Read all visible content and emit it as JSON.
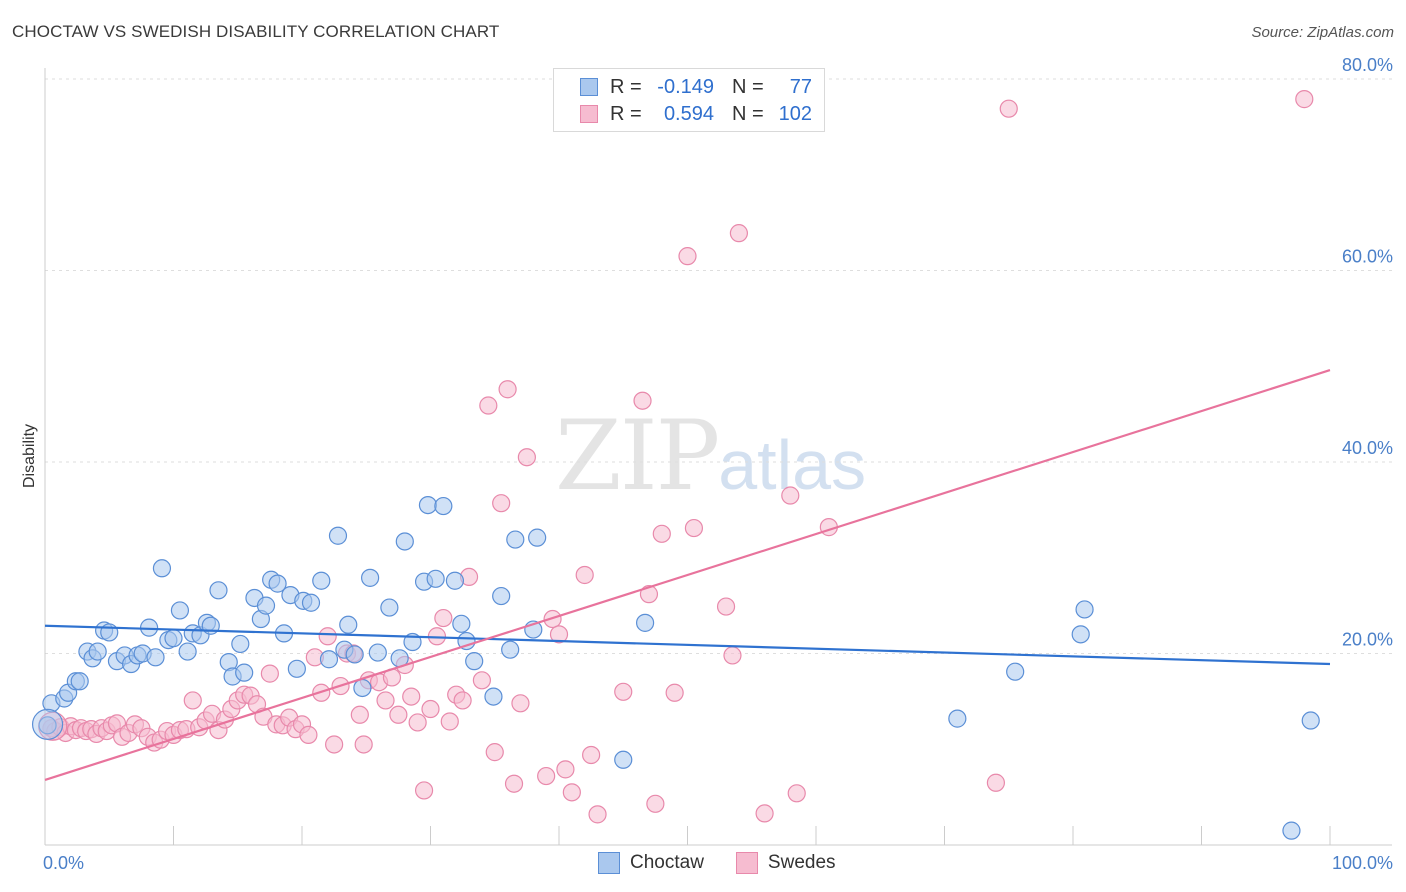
{
  "header": {
    "title": "CHOCTAW VS SWEDISH DISABILITY CORRELATION CHART",
    "source": "Source: ZipAtlas.com"
  },
  "watermark": {
    "zip": "ZIP",
    "atlas": "atlas"
  },
  "legend": {
    "rows": [
      {
        "r_label": "R =",
        "r_value": "-0.149",
        "n_label": "N =",
        "n_value": "77"
      },
      {
        "r_label": "R =",
        "r_value": "0.594",
        "n_label": "N =",
        "n_value": "102"
      }
    ]
  },
  "bottom_legend": {
    "choctaw": "Choctaw",
    "swedes": "Swedes"
  },
  "colors": {
    "choctaw_fill": "#aac8ee",
    "choctaw_stroke": "#5b8fd6",
    "choctaw_line": "#2f72d0",
    "swedes_fill": "#f6bcd0",
    "swedes_stroke": "#e889ab",
    "swedes_line": "#e8739c"
  },
  "chart_data": {
    "type": "scatter",
    "title": "CHOCTAW VS SWEDISH DISABILITY CORRELATION CHART",
    "xlabel": "",
    "ylabel": "Disability",
    "xlim": [
      0,
      100
    ],
    "ylim": [
      0,
      84
    ],
    "x_tick_labels": [
      "0.0%",
      "100.0%"
    ],
    "y_ticks": [
      20,
      40,
      60,
      80
    ],
    "y_tick_labels": [
      "20.0%",
      "40.0%",
      "60.0%",
      "80.0%"
    ],
    "grid": "horizontal dashed",
    "series": [
      {
        "name": "Choctaw",
        "r": -0.149,
        "n": 77,
        "trend": [
          [
            0,
            22.9
          ],
          [
            100,
            18.9
          ]
        ],
        "points": [
          [
            0.2,
            12.5
          ],
          [
            0.5,
            14.8
          ],
          [
            1.5,
            15.3
          ],
          [
            1.8,
            15.9
          ],
          [
            2.4,
            17.1
          ],
          [
            2.7,
            17.1
          ],
          [
            3.3,
            20.2
          ],
          [
            3.7,
            19.5
          ],
          [
            4.1,
            20.2
          ],
          [
            4.6,
            22.4
          ],
          [
            5.0,
            22.2
          ],
          [
            5.6,
            19.2
          ],
          [
            6.2,
            19.8
          ],
          [
            6.7,
            18.9
          ],
          [
            7.2,
            19.8
          ],
          [
            7.6,
            20.0
          ],
          [
            8.1,
            22.7
          ],
          [
            8.6,
            19.6
          ],
          [
            9.1,
            28.9
          ],
          [
            9.6,
            21.4
          ],
          [
            10.0,
            21.6
          ],
          [
            10.5,
            24.5
          ],
          [
            11.1,
            20.2
          ],
          [
            11.5,
            22.1
          ],
          [
            12.1,
            21.9
          ],
          [
            12.6,
            23.2
          ],
          [
            12.9,
            22.9
          ],
          [
            13.5,
            26.6
          ],
          [
            14.3,
            19.1
          ],
          [
            14.6,
            17.6
          ],
          [
            15.2,
            21.0
          ],
          [
            15.5,
            18.0
          ],
          [
            16.3,
            25.8
          ],
          [
            16.8,
            23.6
          ],
          [
            17.2,
            25.0
          ],
          [
            17.6,
            27.7
          ],
          [
            18.1,
            27.3
          ],
          [
            18.6,
            22.1
          ],
          [
            19.1,
            26.1
          ],
          [
            19.6,
            18.4
          ],
          [
            20.1,
            25.5
          ],
          [
            20.7,
            25.3
          ],
          [
            21.5,
            27.6
          ],
          [
            22.1,
            19.4
          ],
          [
            22.8,
            32.3
          ],
          [
            23.3,
            20.4
          ],
          [
            23.6,
            23.0
          ],
          [
            24.1,
            19.9
          ],
          [
            24.7,
            16.4
          ],
          [
            25.3,
            27.9
          ],
          [
            25.9,
            20.1
          ],
          [
            26.8,
            24.8
          ],
          [
            27.6,
            19.5
          ],
          [
            28.0,
            31.7
          ],
          [
            28.6,
            21.2
          ],
          [
            29.5,
            27.5
          ],
          [
            29.8,
            35.5
          ],
          [
            30.4,
            27.8
          ],
          [
            31.0,
            35.4
          ],
          [
            31.9,
            27.6
          ],
          [
            32.4,
            23.1
          ],
          [
            32.8,
            21.3
          ],
          [
            33.4,
            19.2
          ],
          [
            34.9,
            15.5
          ],
          [
            35.5,
            26.0
          ],
          [
            36.2,
            20.4
          ],
          [
            36.6,
            31.9
          ],
          [
            38.0,
            22.5
          ],
          [
            38.3,
            32.1
          ],
          [
            45.0,
            8.9
          ],
          [
            46.7,
            23.2
          ],
          [
            71.0,
            13.2
          ],
          [
            75.5,
            18.1
          ],
          [
            80.6,
            22.0
          ],
          [
            80.9,
            24.6
          ],
          [
            97.0,
            1.5
          ],
          [
            98.5,
            13.0
          ]
        ]
      },
      {
        "name": "Swedes",
        "r": 0.594,
        "n": 102,
        "trend": [
          [
            0,
            6.8
          ],
          [
            100,
            49.6
          ]
        ],
        "points": [
          [
            0.5,
            12.2
          ],
          [
            0.8,
            11.9
          ],
          [
            1.2,
            12.3
          ],
          [
            1.6,
            11.7
          ],
          [
            2.0,
            12.4
          ],
          [
            2.4,
            12.0
          ],
          [
            2.8,
            12.2
          ],
          [
            3.2,
            11.9
          ],
          [
            3.6,
            12.1
          ],
          [
            4.0,
            11.6
          ],
          [
            4.4,
            12.2
          ],
          [
            4.8,
            11.9
          ],
          [
            5.2,
            12.5
          ],
          [
            5.6,
            12.7
          ],
          [
            6.0,
            11.3
          ],
          [
            6.5,
            11.7
          ],
          [
            7.0,
            12.6
          ],
          [
            7.5,
            12.2
          ],
          [
            8.0,
            11.3
          ],
          [
            8.5,
            10.7
          ],
          [
            9.0,
            11.0
          ],
          [
            9.5,
            11.9
          ],
          [
            10.0,
            11.5
          ],
          [
            10.5,
            12.0
          ],
          [
            11.0,
            12.1
          ],
          [
            11.5,
            15.1
          ],
          [
            12.0,
            12.3
          ],
          [
            12.5,
            13.0
          ],
          [
            13.0,
            13.7
          ],
          [
            13.5,
            12.0
          ],
          [
            14.0,
            13.1
          ],
          [
            14.5,
            14.2
          ],
          [
            15.0,
            15.1
          ],
          [
            15.5,
            15.7
          ],
          [
            16.0,
            15.6
          ],
          [
            16.5,
            14.7
          ],
          [
            17.0,
            13.4
          ],
          [
            17.5,
            17.9
          ],
          [
            18.0,
            12.6
          ],
          [
            18.5,
            12.5
          ],
          [
            19.0,
            13.3
          ],
          [
            19.5,
            12.1
          ],
          [
            20.0,
            12.6
          ],
          [
            20.5,
            11.5
          ],
          [
            21.0,
            19.6
          ],
          [
            21.5,
            15.9
          ],
          [
            22.0,
            21.8
          ],
          [
            22.5,
            10.5
          ],
          [
            23.0,
            16.6
          ],
          [
            23.5,
            20.0
          ],
          [
            24.0,
            20.0
          ],
          [
            24.5,
            13.6
          ],
          [
            24.8,
            10.5
          ],
          [
            25.2,
            17.2
          ],
          [
            26.0,
            17.0
          ],
          [
            26.5,
            15.1
          ],
          [
            27.0,
            17.5
          ],
          [
            27.5,
            13.6
          ],
          [
            28.0,
            18.8
          ],
          [
            28.5,
            15.5
          ],
          [
            29.0,
            12.8
          ],
          [
            29.5,
            5.7
          ],
          [
            30.0,
            14.2
          ],
          [
            30.5,
            21.8
          ],
          [
            31.0,
            23.7
          ],
          [
            31.5,
            12.9
          ],
          [
            32.0,
            15.7
          ],
          [
            32.5,
            15.1
          ],
          [
            33.0,
            28.0
          ],
          [
            34.0,
            17.2
          ],
          [
            34.5,
            45.9
          ],
          [
            35.0,
            9.7
          ],
          [
            35.5,
            35.7
          ],
          [
            36.0,
            47.6
          ],
          [
            36.5,
            6.4
          ],
          [
            37.0,
            14.8
          ],
          [
            37.5,
            40.5
          ],
          [
            39.0,
            7.2
          ],
          [
            39.5,
            23.6
          ],
          [
            40.0,
            22.0
          ],
          [
            40.5,
            7.9
          ],
          [
            41.0,
            5.5
          ],
          [
            42.0,
            28.2
          ],
          [
            42.5,
            9.4
          ],
          [
            43.0,
            3.2
          ],
          [
            45.0,
            16.0
          ],
          [
            46.5,
            46.4
          ],
          [
            47.0,
            26.2
          ],
          [
            47.5,
            4.3
          ],
          [
            48.0,
            32.5
          ],
          [
            49.0,
            15.9
          ],
          [
            50.0,
            61.5
          ],
          [
            50.5,
            33.1
          ],
          [
            53.0,
            24.9
          ],
          [
            53.5,
            19.8
          ],
          [
            54.0,
            63.9
          ],
          [
            56.0,
            3.3
          ],
          [
            58.0,
            36.5
          ],
          [
            58.5,
            5.4
          ],
          [
            61.0,
            33.2
          ],
          [
            74.0,
            6.5
          ],
          [
            75.0,
            76.9
          ],
          [
            98.0,
            77.9
          ]
        ]
      }
    ]
  }
}
